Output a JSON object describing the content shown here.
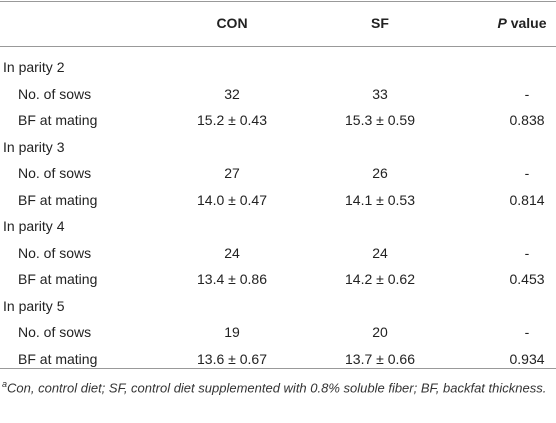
{
  "table": {
    "header": {
      "con": "CON",
      "sf": "SF",
      "p_italic": "P",
      "p_rest": " value"
    },
    "groups": [
      {
        "label": "In parity 2",
        "rows": [
          [
            "No. of sows",
            "32",
            "33",
            "-"
          ],
          [
            "BF at mating",
            "15.2 ± 0.43",
            "15.3 ± 0.59",
            "0.838"
          ]
        ]
      },
      {
        "label": "In parity 3",
        "rows": [
          [
            "No. of sows",
            "27",
            "26",
            "-"
          ],
          [
            "BF at mating",
            "14.0 ± 0.47",
            "14.1 ± 0.53",
            "0.814"
          ]
        ]
      },
      {
        "label": "In parity 4",
        "rows": [
          [
            "No. of sows",
            "24",
            "24",
            "-"
          ],
          [
            "BF at mating",
            "13.4 ± 0.86",
            "14.2 ± 0.62",
            "0.453"
          ]
        ]
      },
      {
        "label": "In parity 5",
        "rows": [
          [
            "No. of sows",
            "19",
            "20",
            "-"
          ],
          [
            "BF at mating",
            "13.6 ± 0.67",
            "13.7 ± 0.66",
            "0.934"
          ]
        ]
      }
    ]
  },
  "footnote": {
    "mark": "a",
    "text": "Con, control diet; SF, control diet supplemented with 0.8% soluble fiber; BF, backfat thickness."
  }
}
